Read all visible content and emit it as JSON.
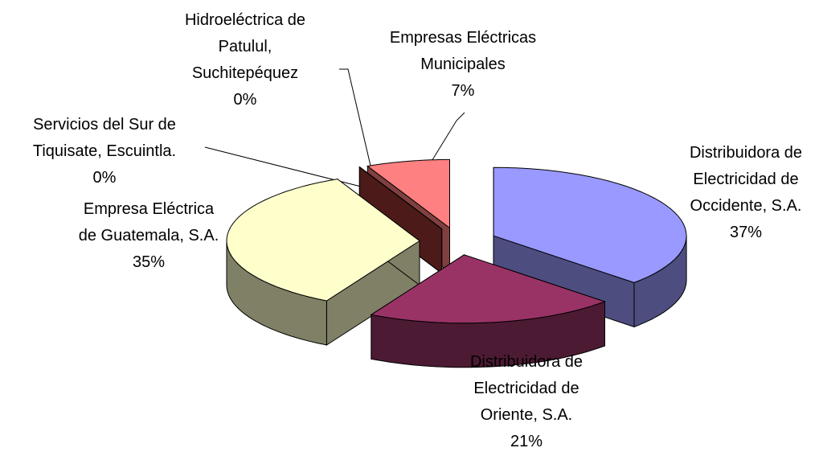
{
  "chart_data": {
    "type": "pie3d",
    "categories": [
      "Distribuidora de Electricidad de Occidente, S.A.",
      "Distribuidora de Electricidad de Oriente, S.A.",
      "Empresa Eléctrica de Guatemala, S.A.",
      "Servicios del Sur de Tiquisate, Escuintla.",
      "Hidroeléctrica de Patulul, Suchitepéquez",
      "Empresas Eléctricas Municipales"
    ],
    "values": [
      37,
      21,
      35,
      0,
      0,
      7
    ],
    "value_labels": [
      "37%",
      "21%",
      "35%",
      "0%",
      "0%",
      "7%"
    ],
    "colors": [
      "#9999ff",
      "#993366",
      "#ffffcc",
      "#669999",
      "#993333",
      "#ff8080"
    ]
  }
}
